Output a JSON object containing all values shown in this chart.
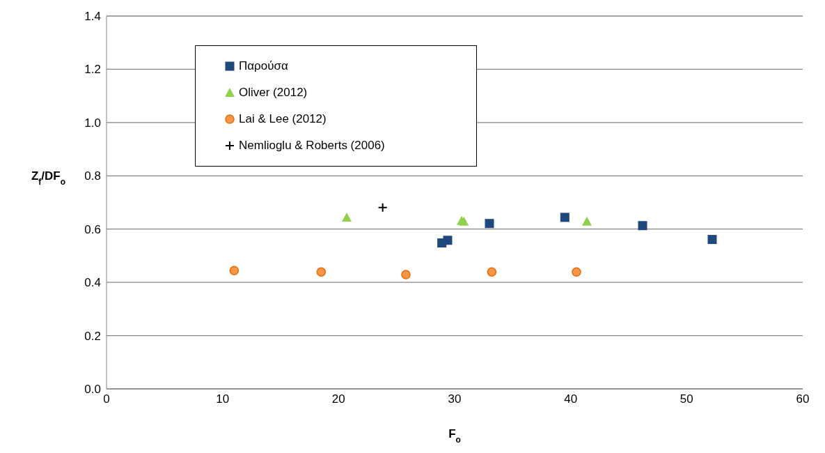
{
  "chart_data": {
    "type": "scatter",
    "xlabel": "F$_{o}$",
    "ylabel": "Z$_{f}$/DF$_{o}$",
    "xlim": [
      0,
      60
    ],
    "xticks": [
      0,
      10,
      20,
      30,
      40,
      50,
      60
    ],
    "ylim": [
      0,
      1.4
    ],
    "yticks": [
      {
        "value": 0,
        "label": "0.0"
      },
      0.2,
      0.4,
      0.6,
      0.8,
      {
        "value": 1,
        "label": "1.0"
      },
      1.2,
      1.4
    ],
    "grid": "y",
    "legend": "top left",
    "series": [
      {
        "name": "Παρούσα",
        "color": "#1f497d",
        "marker": "square",
        "x": [
          28.9,
          29.4,
          33.0,
          39.5,
          46.2,
          52.2
        ],
        "values": [
          0.548,
          0.558,
          0.621,
          0.644,
          0.613,
          0.561
        ]
      },
      {
        "name": "Oliver (2012)",
        "color": "#92d050",
        "marker": "triangle",
        "x": [
          20.7,
          30.6,
          30.8,
          41.4
        ],
        "values": [
          0.644,
          0.631,
          0.629,
          0.629
        ]
      },
      {
        "name": "Lai & Lee (2012)",
        "color": "#f79646",
        "marker": "circle",
        "x": [
          11.0,
          18.5,
          25.8,
          33.2,
          40.5
        ],
        "values": [
          0.444,
          0.439,
          0.429,
          0.439,
          0.439
        ]
      },
      {
        "name": "Nemlioglu & Roberts (2006)",
        "color": "#000000",
        "marker": "cross",
        "x": [
          23.8
        ],
        "values": [
          0.681
        ]
      }
    ]
  }
}
